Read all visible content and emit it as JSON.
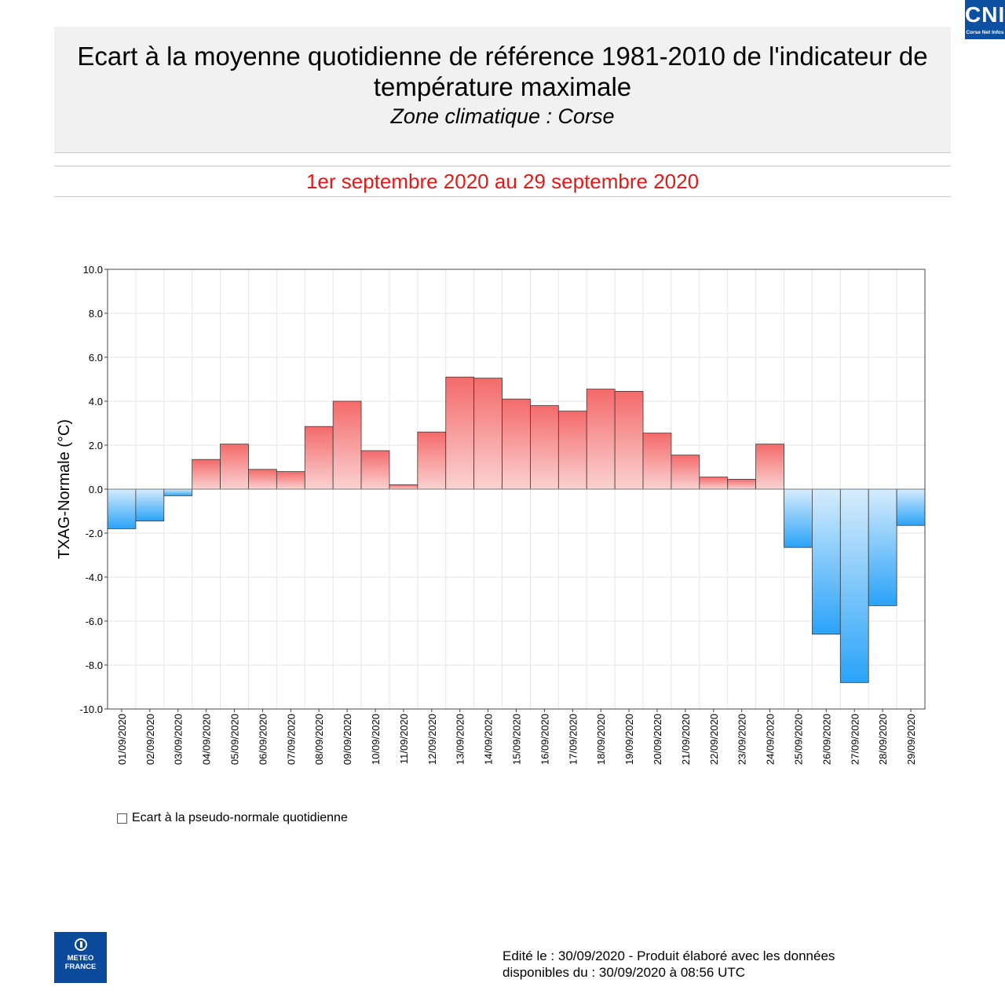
{
  "header": {
    "title": "Ecart à la moyenne quotidienne de référence 1981-2010 de l'indicateur de température maximale",
    "zone": "Zone climatique : Corse",
    "period": "1er septembre 2020 au 29 septembre 2020"
  },
  "legend": {
    "label": "Ecart à la pseudo-normale quotidienne"
  },
  "footer": {
    "line1": "Edité le : 30/09/2020 - Produit élaboré avec les données",
    "line2": "disponibles du : 30/09/2020 à 08:56 UTC"
  },
  "logos": {
    "meteo_line1": "METEO",
    "meteo_line2": "FRANCE",
    "cni_big": "CNI",
    "cni_small": "Corse Net Infos"
  },
  "colors": {
    "positive_top": "#f46a6a",
    "positive_bottom": "#fbd2d2",
    "negative_top": "#d6ecfc",
    "negative_bottom": "#2aa3f8",
    "period": "#e01a1a"
  },
  "chart_data": {
    "type": "bar",
    "title": "Ecart à la moyenne quotidienne de référence 1981-2010 de l'indicateur de température maximale",
    "xlabel": "",
    "ylabel": "TXAG-Normale (°C)",
    "ylim": [
      -10,
      10
    ],
    "yticks": [
      10,
      8,
      6,
      4,
      2,
      0,
      -2,
      -4,
      -6,
      -8,
      -10
    ],
    "ytick_labels": [
      "10.0",
      "8.0",
      "6.0",
      "4.0",
      "2.0",
      "0.0",
      "-2.0",
      "-4.0",
      "-6.0",
      "-8.0",
      "-10.0"
    ],
    "grid": true,
    "categories": [
      "01/09/2020",
      "02/09/2020",
      "03/09/2020",
      "04/09/2020",
      "05/09/2020",
      "06/09/2020",
      "07/09/2020",
      "08/09/2020",
      "09/09/2020",
      "10/09/2020",
      "11/09/2020",
      "12/09/2020",
      "13/09/2020",
      "14/09/2020",
      "15/09/2020",
      "16/09/2020",
      "17/09/2020",
      "18/09/2020",
      "19/09/2020",
      "20/09/2020",
      "21/09/2020",
      "22/09/2020",
      "23/09/2020",
      "24/09/2020",
      "25/09/2020",
      "26/09/2020",
      "27/09/2020",
      "28/09/2020",
      "29/09/2020"
    ],
    "values": [
      -1.8,
      -1.45,
      -0.3,
      1.35,
      2.05,
      0.9,
      0.8,
      2.85,
      4.0,
      1.75,
      0.2,
      2.6,
      5.1,
      5.05,
      4.1,
      3.8,
      3.55,
      4.55,
      4.45,
      2.55,
      1.55,
      0.55,
      0.45,
      2.05,
      -2.65,
      -6.6,
      -8.8,
      -5.3,
      -1.65
    ],
    "legend": [
      "Ecart à la pseudo-normale quotidienne"
    ]
  }
}
